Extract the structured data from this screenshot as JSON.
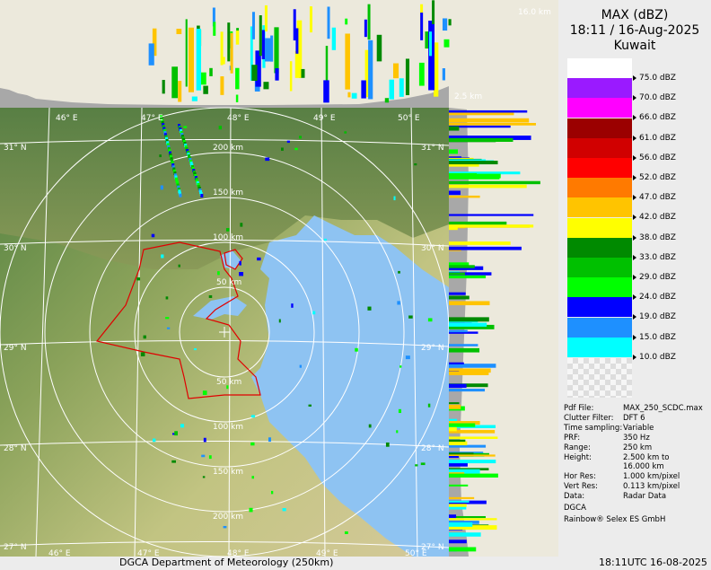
{
  "legend": {
    "title_line1": "MAX (dBZ)",
    "title_line2": "18:11 / 16-Aug-2025",
    "title_line3": "Kuwait",
    "scale": [
      {
        "label": "75.0 dBZ",
        "color": "#ffffff"
      },
      {
        "label": "70.0 dBZ",
        "color": "#9a1aff"
      },
      {
        "label": "66.0 dBZ",
        "color": "#ff00ff"
      },
      {
        "label": "61.0 dBZ",
        "color": "#9b0000"
      },
      {
        "label": "56.0 dBZ",
        "color": "#d10000"
      },
      {
        "label": "52.0 dBZ",
        "color": "#ff0000"
      },
      {
        "label": "47.0 dBZ",
        "color": "#ff7a00"
      },
      {
        "label": "42.0 dBZ",
        "color": "#ffc400"
      },
      {
        "label": "38.0 dBZ",
        "color": "#ffff00"
      },
      {
        "label": "33.0 dBZ",
        "color": "#008a00"
      },
      {
        "label": "29.0 dBZ",
        "color": "#00c000"
      },
      {
        "label": "24.0 dBZ",
        "color": "#00ff00"
      },
      {
        "label": "19.0 dBZ",
        "color": "#0000ff"
      },
      {
        "label": "15.0 dBZ",
        "color": "#1e90ff"
      },
      {
        "label": "10.0 dBZ",
        "color": "#00ffff"
      }
    ]
  },
  "info": [
    {
      "key": "Pdf File:",
      "value": "MAX_250_SCDC.max"
    },
    {
      "key": "Clutter Filter:",
      "value": "DFT 6"
    },
    {
      "key": "Time sampling:",
      "value": "Variable"
    },
    {
      "key": "PRF:",
      "value": "350 Hz"
    },
    {
      "key": "Range:",
      "value": "250 km"
    },
    {
      "key": "Height:",
      "value": "2.500 km to"
    },
    {
      "key": "",
      "value": "16.000 km"
    },
    {
      "key": "Hor Res:",
      "value": "1.000 km/pixel"
    },
    {
      "key": "Vert Res:",
      "value": "0.113 km/pixel"
    },
    {
      "key": "Data:",
      "value": "Radar Data"
    },
    {
      "key": "DGCA",
      "value": ""
    },
    {
      "key": "Rainbow® Selex ES GmbH",
      "value": ""
    }
  ],
  "footer": {
    "left": "DGCA Department of Meteorology (250km)",
    "right": "18:11UTC 16-08-2025"
  },
  "map": {
    "lon_labels": [
      "46° E",
      "47° E",
      "48° E",
      "49° E",
      "50° E"
    ],
    "lat_labels": [
      "31° N",
      "30° N",
      "29° N",
      "28° N",
      "27° N"
    ],
    "range_labels_north": [
      "200 km",
      "150 km",
      "100 km",
      "50 km"
    ],
    "range_labels_south": [
      "50 km",
      "100 km",
      "150 km",
      "200 km"
    ],
    "height_labels": [
      "16.0 km",
      "2.5 km"
    ]
  },
  "colors": {
    "sea": "#8ec3f2",
    "land_low": "#b6bf74",
    "land_high": "#5f8c4c",
    "border": "#e00000",
    "grid": "#ffffff",
    "panel": "#ececec"
  }
}
